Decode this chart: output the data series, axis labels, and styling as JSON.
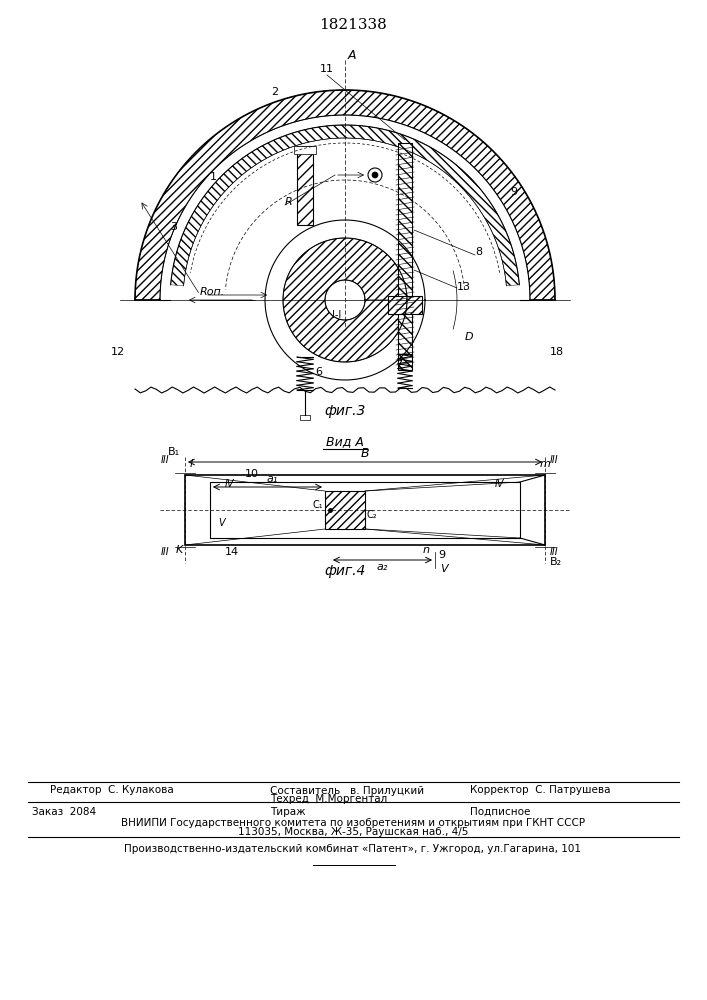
{
  "patent_number": "1821338",
  "footer": {
    "editor": "Редактор  С. Кулакова",
    "composer": "Составитель   в. Прилуцкий",
    "techred": "Техред  М.Моргентал",
    "corrector": "Корректор  С. Патрушева",
    "order": "Заказ  2084",
    "tirazh": "Тираж",
    "podpisnoe": "Подписное",
    "vniiipi": "ВНИИПИ Государственного комитета по изобретениям и открытиям при ГКНТ СССР",
    "address": "113035, Москва, Ж-35, Раушская наб., 4/5",
    "plant": "Производственно-издательский комбинат «Патент», г. Ужгород, ул.Гагарина, 101"
  }
}
